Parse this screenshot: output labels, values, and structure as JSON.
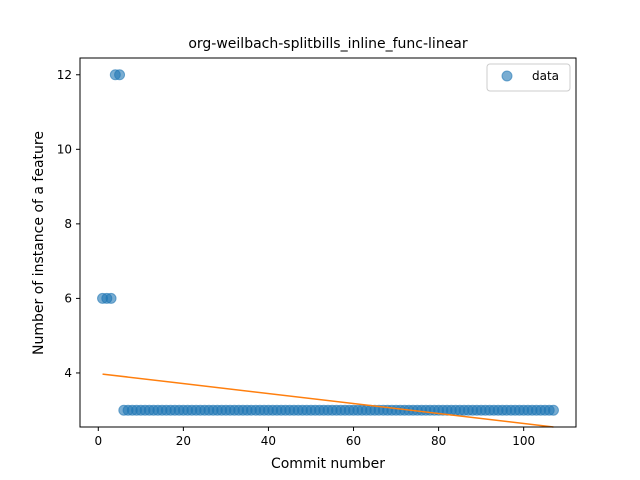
{
  "chart_data": {
    "type": "scatter",
    "title": "org-weilbach-splitbills_inline_func-linear",
    "xlabel": "Commit number",
    "ylabel": "Number of instance of a feature",
    "xlim": [
      -4.3,
      112.3
    ],
    "ylim": [
      2.55,
      12.45
    ],
    "xticks": [
      0,
      20,
      40,
      60,
      80,
      100
    ],
    "yticks": [
      4,
      6,
      8,
      10,
      12
    ],
    "grid": false,
    "legend_position": "top-right",
    "colors": {
      "data": "#1f77b4",
      "fit": "#ff7f0e"
    },
    "series": [
      {
        "name": "data",
        "kind": "scatter",
        "points": [
          [
            1,
            6
          ],
          [
            2,
            6
          ],
          [
            3,
            6
          ],
          [
            4,
            12
          ],
          [
            5,
            12
          ]
        ],
        "constant_run": {
          "x_start": 6,
          "x_end": 107,
          "y": 3
        }
      },
      {
        "name": "",
        "kind": "line",
        "points": [
          [
            1,
            3.97
          ],
          [
            107,
            2.55
          ]
        ]
      }
    ],
    "legend": [
      {
        "label": "data",
        "series": "data"
      }
    ]
  }
}
